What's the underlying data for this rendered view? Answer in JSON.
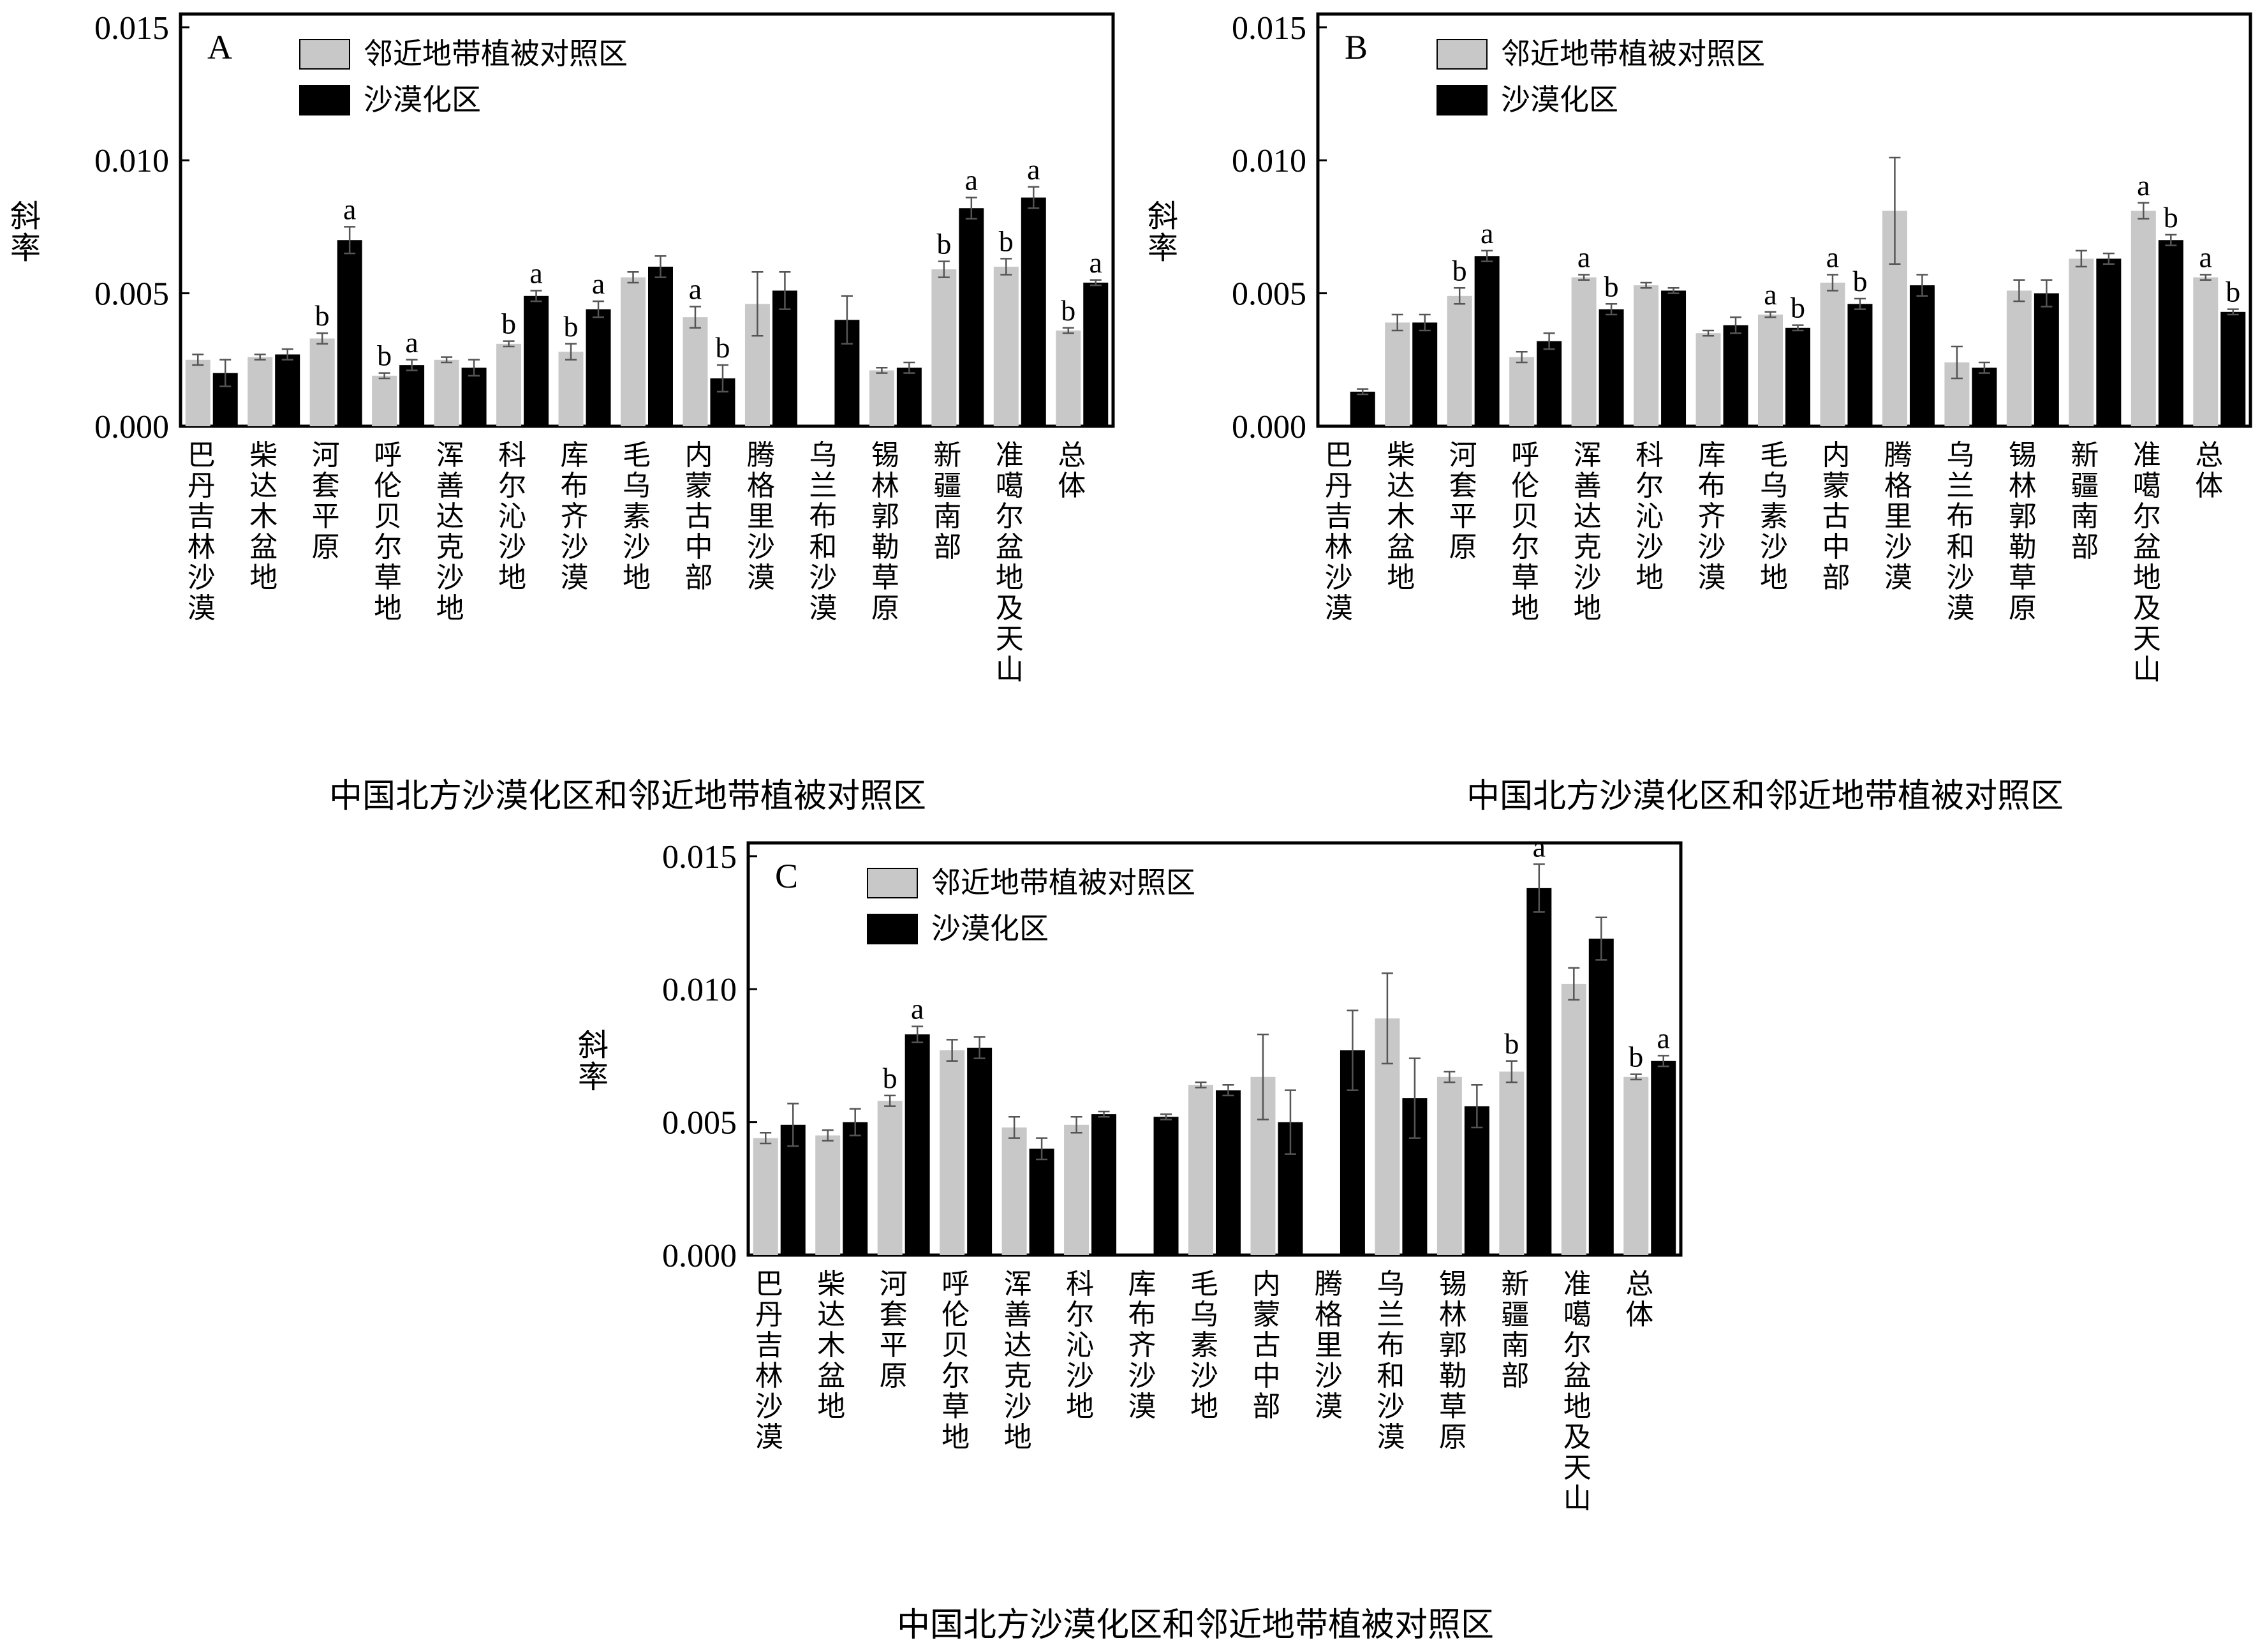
{
  "chart_data": [
    {
      "type": "bar",
      "panel": "A",
      "xlabel": "中国北方沙漠化区和邻近地带植被对照区",
      "ylabel": "斜率",
      "ylim": [
        0,
        0.0155
      ],
      "yticks": [
        "0.000",
        "0.005",
        "0.010",
        "0.015"
      ],
      "legend_placement": "top-left",
      "categories": [
        "巴丹吉林沙漠",
        "柴达木盆地",
        "河套平原",
        "呼伦贝尔草地",
        "浑善达克沙地",
        "科尔沁沙地",
        "库布齐沙漠",
        "毛乌素沙地",
        "内蒙古中部",
        "腾格里沙漠",
        "乌兰布和沙漠",
        "锡林郭勒草原",
        "新疆南部",
        "准噶尔盆地及天山",
        "总体"
      ],
      "series": [
        {
          "name": "邻近地带植被对照区",
          "color": "#c8c8c8",
          "values": [
            0.0025,
            0.0026,
            0.0033,
            0.0019,
            0.0025,
            0.0031,
            0.0028,
            0.0056,
            0.0041,
            0.0046,
            null,
            0.0021,
            0.0059,
            0.006,
            0.0036
          ],
          "errors": [
            0.0002,
            0.0001,
            0.0002,
            0.0001,
            0.0001,
            0.0001,
            0.0003,
            0.0002,
            0.0004,
            0.0012,
            null,
            0.0001,
            0.0003,
            0.0003,
            0.0001
          ],
          "labels": [
            "",
            "",
            "b",
            "b",
            "",
            "b",
            "b",
            "",
            "a",
            "",
            "",
            "",
            "b",
            "b",
            "b"
          ]
        },
        {
          "name": "沙漠化区",
          "color": "#000000",
          "values": [
            0.002,
            0.0027,
            0.007,
            0.0023,
            0.0022,
            0.0049,
            0.0044,
            0.006,
            0.0018,
            0.0051,
            0.004,
            0.0022,
            0.0082,
            0.0086,
            0.0054
          ],
          "errors": [
            0.0005,
            0.0002,
            0.0005,
            0.0002,
            0.0003,
            0.0002,
            0.0003,
            0.0004,
            0.0005,
            0.0007,
            0.0009,
            0.0002,
            0.0004,
            0.0004,
            0.0001
          ],
          "labels": [
            "",
            "",
            "a",
            "a",
            "",
            "a",
            "a",
            "",
            "b",
            "",
            "",
            "",
            "a",
            "a",
            "a"
          ]
        }
      ]
    },
    {
      "type": "bar",
      "panel": "B",
      "xlabel": "中国北方沙漠化区和邻近地带植被对照区",
      "ylabel": "斜率",
      "ylim": [
        0,
        0.0155
      ],
      "yticks": [
        "0.000",
        "0.005",
        "0.010",
        "0.015"
      ],
      "legend_placement": "top-left",
      "categories": [
        "巴丹吉林沙漠",
        "柴达木盆地",
        "河套平原",
        "呼伦贝尔草地",
        "浑善达克沙地",
        "科尔沁沙地",
        "库布齐沙漠",
        "毛乌素沙地",
        "内蒙古中部",
        "腾格里沙漠",
        "乌兰布和沙漠",
        "锡林郭勒草原",
        "新疆南部",
        "准噶尔盆地及天山",
        "总体"
      ],
      "series": [
        {
          "name": "邻近地带植被对照区",
          "color": "#c8c8c8",
          "values": [
            null,
            0.0039,
            0.0049,
            0.0026,
            0.0056,
            0.0053,
            0.0035,
            0.0042,
            0.0054,
            0.0081,
            0.0024,
            0.0051,
            0.0063,
            0.0081,
            0.0056
          ],
          "errors": [
            null,
            0.0003,
            0.0003,
            0.0002,
            0.0001,
            0.0001,
            0.0001,
            0.0001,
            0.0003,
            0.002,
            0.0006,
            0.0004,
            0.0003,
            0.0003,
            0.0001
          ],
          "labels": [
            "",
            "",
            "b",
            "",
            "a",
            "",
            "",
            "a",
            "a",
            "",
            "",
            "",
            "",
            "a",
            "a"
          ]
        },
        {
          "name": "沙漠化区",
          "color": "#000000",
          "values": [
            0.0013,
            0.0039,
            0.0064,
            0.0032,
            0.0044,
            0.0051,
            0.0038,
            0.0037,
            0.0046,
            0.0053,
            0.0022,
            0.005,
            0.0063,
            0.007,
            0.0043
          ],
          "errors": [
            0.0001,
            0.0003,
            0.0002,
            0.0003,
            0.0002,
            0.0001,
            0.0003,
            0.0001,
            0.0002,
            0.0004,
            0.0002,
            0.0005,
            0.0002,
            0.0002,
            0.0001
          ],
          "labels": [
            "",
            "",
            "a",
            "",
            "b",
            "",
            "",
            "b",
            "b",
            "",
            "",
            "",
            "",
            "b",
            "b"
          ]
        }
      ]
    },
    {
      "type": "bar",
      "panel": "C",
      "xlabel": "中国北方沙漠化区和邻近地带植被对照区",
      "ylabel": "斜率",
      "ylim": [
        0,
        0.0155
      ],
      "yticks": [
        "0.000",
        "0.005",
        "0.010",
        "0.015"
      ],
      "legend_placement": "top-left",
      "categories": [
        "巴丹吉林沙漠",
        "柴达木盆地",
        "河套平原",
        "呼伦贝尔草地",
        "浑善达克沙地",
        "科尔沁沙地",
        "库布齐沙漠",
        "毛乌素沙地",
        "内蒙古中部",
        "腾格里沙漠",
        "乌兰布和沙漠",
        "锡林郭勒草原",
        "新疆南部",
        "准噶尔盆地及天山",
        "总体"
      ],
      "series": [
        {
          "name": "邻近地带植被对照区",
          "color": "#c8c8c8",
          "values": [
            0.0044,
            0.0045,
            0.0058,
            0.0077,
            0.0048,
            0.0049,
            null,
            0.0064,
            0.0067,
            null,
            0.0089,
            0.0067,
            0.0069,
            0.0102,
            0.0067
          ],
          "errors": [
            0.0002,
            0.0002,
            0.0002,
            0.0004,
            0.0004,
            0.0003,
            null,
            0.0001,
            0.0016,
            null,
            0.0017,
            0.0002,
            0.0004,
            0.0006,
            0.0001
          ],
          "labels": [
            "",
            "",
            "b",
            "",
            "",
            "",
            "",
            "",
            "",
            "",
            "",
            "",
            "b",
            "",
            "b"
          ]
        },
        {
          "name": "沙漠化区",
          "color": "#000000",
          "values": [
            0.0049,
            0.005,
            0.0083,
            0.0078,
            0.004,
            0.0053,
            0.0052,
            0.0062,
            0.005,
            0.0077,
            0.0059,
            0.0056,
            0.0138,
            0.0119,
            0.0073
          ],
          "errors": [
            0.0008,
            0.0005,
            0.0003,
            0.0004,
            0.0004,
            0.0001,
            0.0001,
            0.0002,
            0.0012,
            0.0015,
            0.0015,
            0.0008,
            0.0009,
            0.0008,
            0.0002
          ],
          "labels": [
            "",
            "",
            "a",
            "",
            "",
            "",
            "",
            "",
            "",
            "",
            "",
            "",
            "a",
            "",
            "a"
          ]
        }
      ]
    }
  ]
}
